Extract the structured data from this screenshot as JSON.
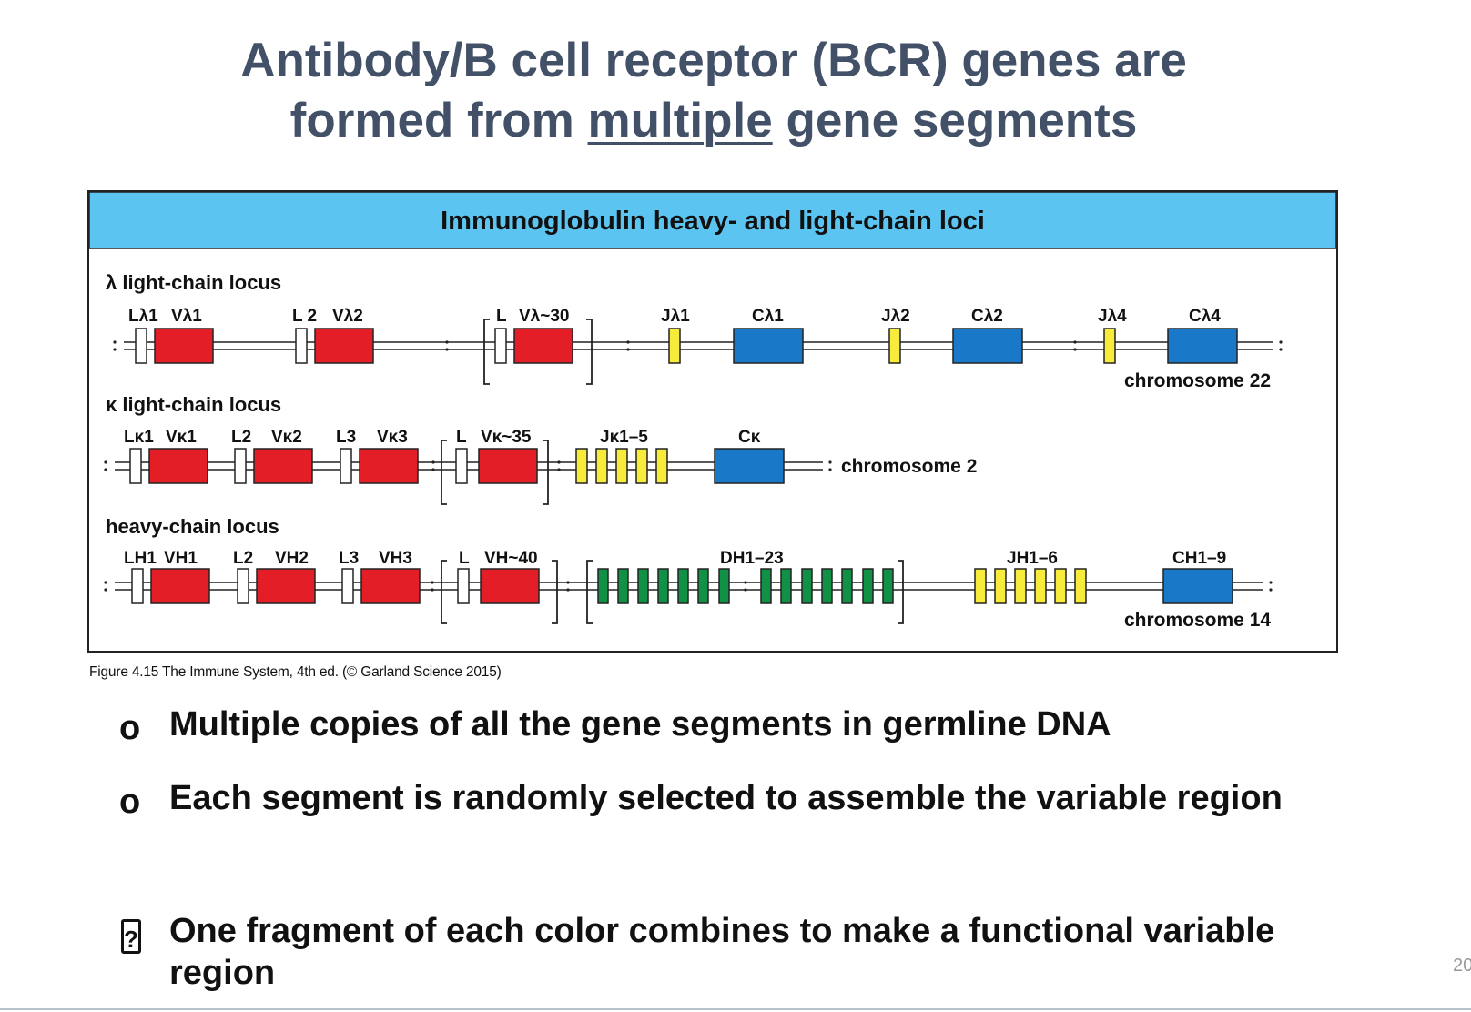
{
  "slide": {
    "title_line1": "Antibody/B cell receptor (BCR) genes are",
    "title_line2_pre": "formed from ",
    "title_line2_underlined": "multiple",
    "title_line2_post": " gene segments",
    "slide_number": "20"
  },
  "figure": {
    "header": "Immunoglobulin heavy- and light-chain loci",
    "caption": "Figure 4.15 The Immune System, 4th ed. (© Garland Science 2015)",
    "colors": {
      "header_bg": "#5bc4f1",
      "V": "#e41e26",
      "J": "#f7eb3c",
      "D": "#119146",
      "C": "#1a78c8",
      "L": "#ffffff"
    },
    "loci": {
      "lambda": {
        "name": "λ light-chain locus",
        "chromosome": "chromosome 22",
        "labels": {
          "L1": "Lλ1",
          "V1": "Vλ1",
          "L2": "L 2",
          "V2": "Vλ2",
          "Ln": "L",
          "Vn": "Vλ~30",
          "J1": "Jλ1",
          "C1": "Cλ1",
          "J2": "Jλ2",
          "C2": "Cλ2",
          "J4": "Jλ4",
          "C4": "Cλ4"
        }
      },
      "kappa": {
        "name": "κ light-chain locus",
        "chromosome": "chromosome 2",
        "labels": {
          "L1": "Lκ1",
          "V1": "Vκ1",
          "L2": "L2",
          "V2": "Vκ2",
          "L3": "L3",
          "V3": "Vκ3",
          "Ln": "L",
          "Vn": "Vκ~35",
          "J": "Jκ1–5",
          "C": "Cκ"
        }
      },
      "heavy": {
        "name": "heavy-chain locus",
        "chromosome": "chromosome 14",
        "labels": {
          "L1": "LH1",
          "V1": "VH1",
          "L2": "L2",
          "V2": "VH2",
          "L3": "L3",
          "V3": "VH3",
          "Ln": "L",
          "Vn": "VH~40",
          "D": "DH1–23",
          "J": "JH1–6",
          "C": "CH1–9"
        }
      }
    }
  },
  "bullets": [
    {
      "marker": "o",
      "text": "Multiple copies of all the gene segments in germline DNA"
    },
    {
      "marker": "o",
      "text": "Each segment is randomly selected to assemble the variable region"
    },
    {
      "marker": "?",
      "text": "One fragment of each color combines to make a functional variable region"
    }
  ]
}
